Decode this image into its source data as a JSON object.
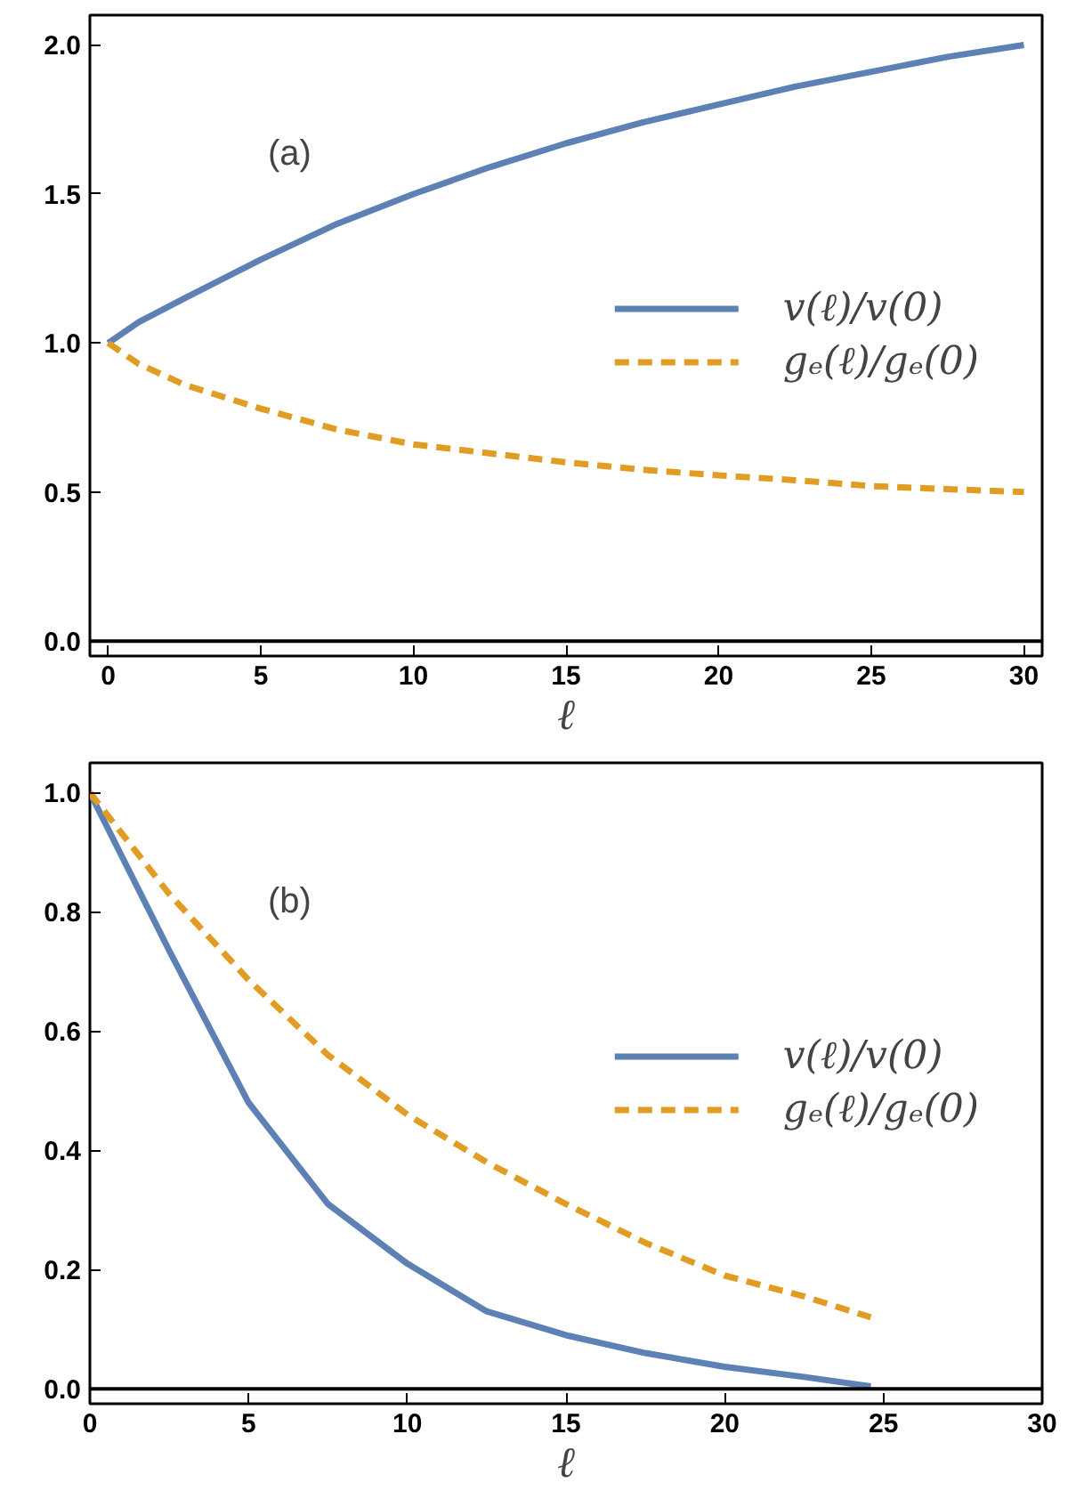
{
  "chart_data": [
    {
      "type": "line",
      "xlabel": "ℓ",
      "annotations": [
        "(a)"
      ],
      "x": [
        0,
        1,
        2.5,
        5,
        7.5,
        10,
        12.5,
        15,
        17.5,
        20,
        22.5,
        25,
        27.5,
        30
      ],
      "series": [
        {
          "name": "v(ℓ)/v(0)",
          "color": "#5e81b5",
          "line_style": "solid",
          "values": [
            1,
            1.07,
            1.15,
            1.28,
            1.4,
            1.5,
            1.59,
            1.67,
            1.74,
            1.8,
            1.86,
            1.91,
            1.96,
            2.0
          ]
        },
        {
          "name": "gₑ(ℓ)/gₑ(0)",
          "color": "#e19c24",
          "line_style": "dashed",
          "values": [
            1,
            0.93,
            0.86,
            0.78,
            0.71,
            0.66,
            0.63,
            0.6,
            0.575,
            0.556,
            0.54,
            0.52,
            0.51,
            0.5
          ]
        }
      ],
      "xlim": [
        -0.6,
        30.6
      ],
      "ylim": [
        -0.05,
        2.1
      ],
      "xticks": [
        0,
        5,
        10,
        15,
        20,
        25,
        30
      ],
      "yticks": [
        {
          "value": 0,
          "label": "0.0"
        },
        0.5,
        {
          "value": 1,
          "label": "1.0"
        },
        1.5,
        {
          "value": 2,
          "label": "2.0"
        }
      ],
      "ref_lines": [
        {
          "axis": "y",
          "value": 0,
          "color": "#000000"
        }
      ],
      "grid": false,
      "legend": "right"
    },
    {
      "type": "line",
      "xlabel": "ℓ",
      "annotations": [
        "(b)"
      ],
      "x": [
        0,
        2.5,
        5,
        7.5,
        10,
        12.5,
        15,
        17.5,
        20,
        22.5,
        24.6
      ],
      "series": [
        {
          "name": "v(ℓ)/v(0)",
          "color": "#5e81b5",
          "line_style": "solid",
          "values": [
            1,
            0.735,
            0.48,
            0.31,
            0.21,
            0.13,
            0.09,
            0.06,
            0.037,
            0.02,
            0.004
          ]
        },
        {
          "name": "gₑ(ℓ)/gₑ(0)",
          "color": "#e19c24",
          "line_style": "dashed",
          "values": [
            1,
            0.83,
            0.686,
            0.56,
            0.46,
            0.38,
            0.31,
            0.245,
            0.19,
            0.155,
            0.12
          ]
        }
      ],
      "xlim": [
        0,
        30
      ],
      "ylim": [
        -0.025,
        1.05
      ],
      "xticks": [
        0,
        5,
        10,
        15,
        20,
        25,
        30
      ],
      "yticks": [
        {
          "value": 0,
          "label": "0.0"
        },
        0.2,
        0.4,
        0.6,
        0.8,
        {
          "value": 1,
          "label": "1.0"
        }
      ],
      "ref_lines": [
        {
          "axis": "y",
          "value": 0,
          "color": "#000000"
        }
      ],
      "grid": false,
      "legend": "right"
    }
  ]
}
